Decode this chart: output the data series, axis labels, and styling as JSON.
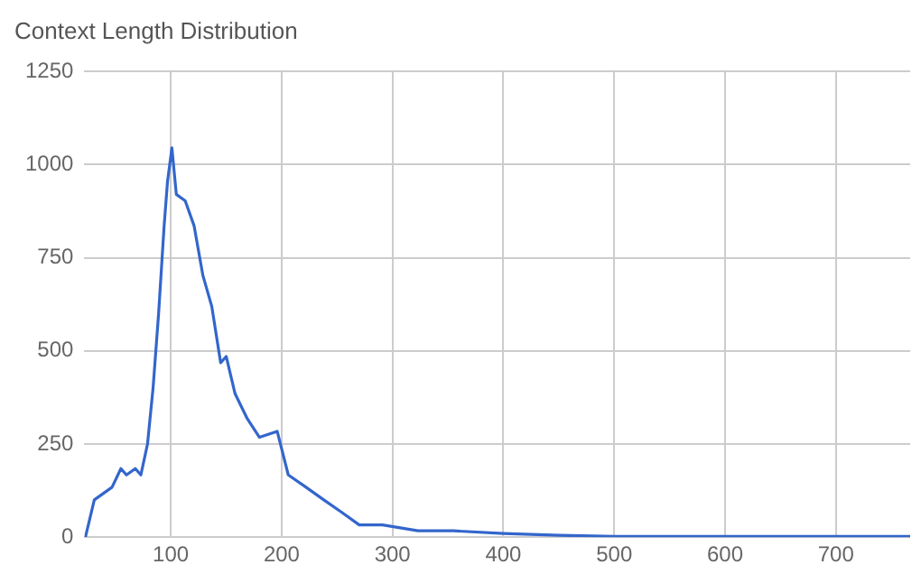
{
  "chart_data": {
    "type": "line",
    "title": "Context Length Distribution",
    "x": [
      23,
      31,
      39,
      47,
      55,
      60,
      68,
      73,
      79,
      84,
      89,
      94,
      97,
      101,
      105,
      113,
      121,
      129,
      137,
      145,
      150,
      158,
      169,
      180,
      196,
      206,
      222,
      238,
      254,
      270,
      291,
      323,
      355,
      400,
      450,
      500,
      600,
      700,
      767
    ],
    "series": [
      {
        "color": "#3366cc",
        "values": [
          0,
          100,
          117,
          134,
          184,
          167,
          184,
          167,
          250,
          400,
          600,
          836,
          953,
          1045,
          920,
          903,
          836,
          702,
          619,
          468,
          485,
          385,
          318,
          268,
          284,
          167,
          134,
          100,
          67,
          33,
          33,
          17,
          17,
          10,
          5,
          2,
          2,
          2,
          2
        ]
      }
    ],
    "xlim": [
      22,
      767
    ],
    "xticks": [
      100,
      200,
      300,
      400,
      500,
      600,
      700
    ],
    "ylim": [
      0,
      1250
    ],
    "yticks": [
      0,
      250,
      500,
      750,
      1000,
      1250
    ],
    "grid": true,
    "legend": false,
    "marker": "none",
    "line_style": "solid"
  }
}
